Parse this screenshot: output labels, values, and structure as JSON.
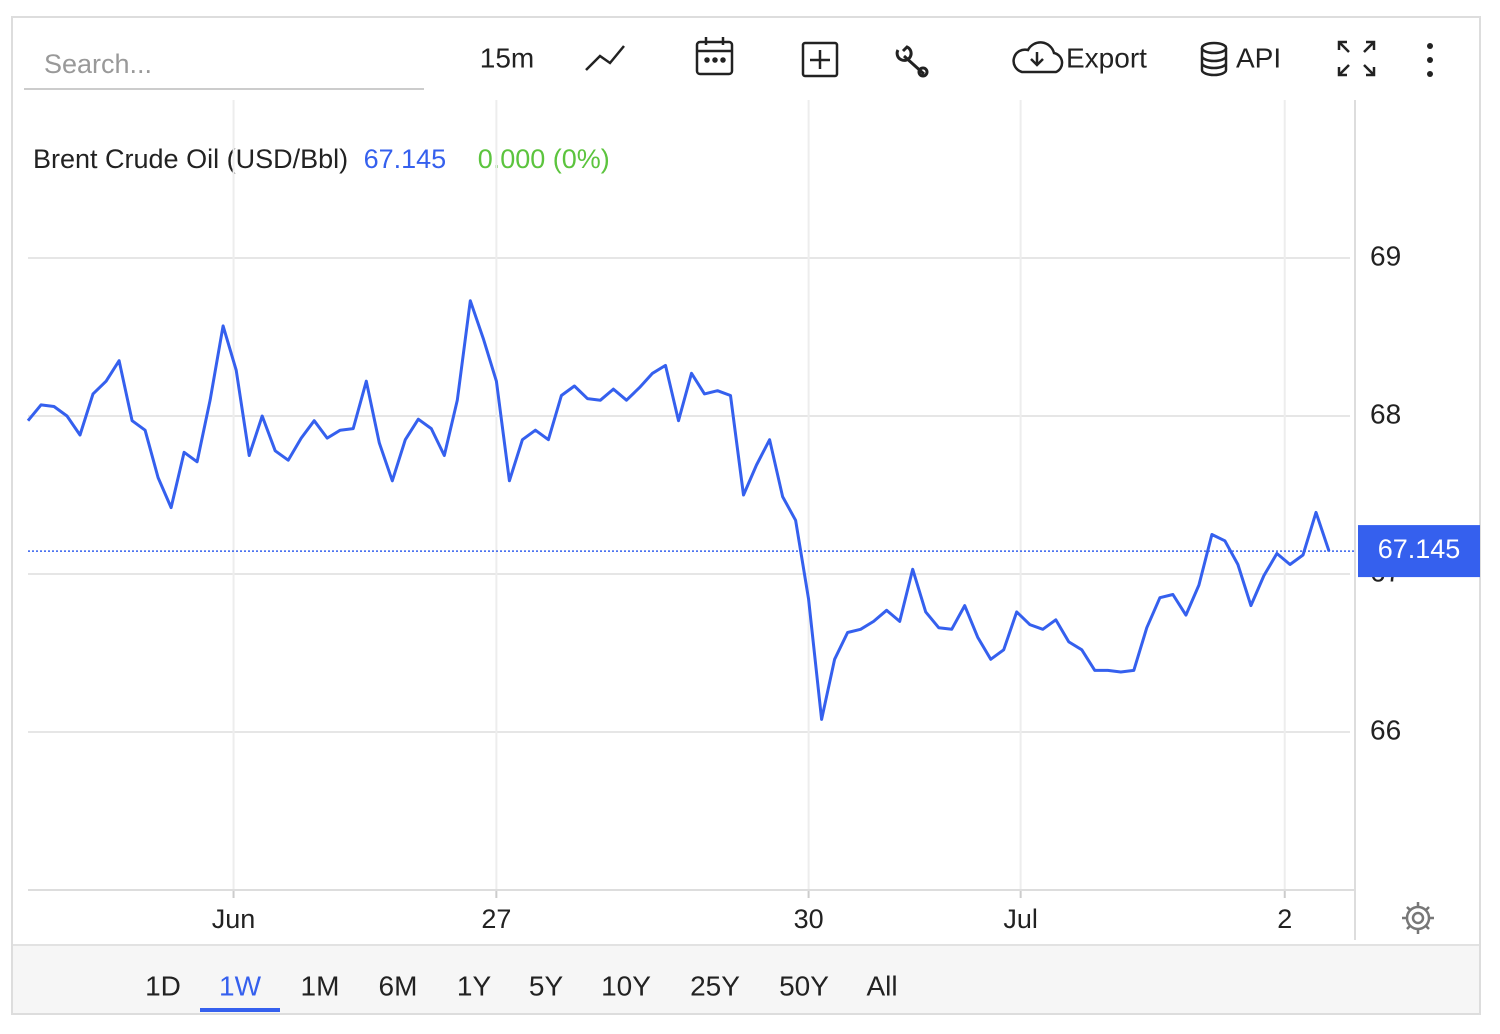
{
  "toolbar": {
    "search_placeholder": "Search...",
    "interval": "15m",
    "export": "Export",
    "api": "API"
  },
  "ranges": {
    "items": [
      "1D",
      "1W",
      "1M",
      "6M",
      "1Y",
      "5Y",
      "10Y",
      "25Y",
      "50Y",
      "All"
    ],
    "active": "1W"
  },
  "chart_data": {
    "type": "line",
    "title": "Brent Crude Oil (USD/Bbl)",
    "last_price": 67.145,
    "change": "0.000 (0%)",
    "change_color": "#5cc43e",
    "x": [
      0,
      1,
      2,
      3,
      4,
      5,
      6,
      7,
      8,
      9,
      10,
      11,
      12,
      13,
      14,
      15,
      16,
      17,
      18,
      19,
      20,
      21,
      22,
      23,
      24,
      25,
      26,
      27,
      28,
      29,
      30,
      31,
      32,
      33,
      34,
      35,
      36,
      37,
      38,
      39,
      40,
      41,
      42,
      43,
      44,
      45,
      46,
      47,
      48,
      49,
      50,
      51,
      52,
      53,
      54,
      55,
      56,
      57,
      58,
      59,
      60,
      61,
      62,
      63,
      64,
      65,
      66,
      67,
      68,
      69,
      70,
      71,
      72,
      73,
      74,
      75,
      76,
      77,
      78,
      79,
      80,
      81,
      82,
      83,
      84,
      85,
      86,
      87,
      88,
      89,
      90,
      91,
      92,
      93,
      94,
      95,
      96,
      97,
      98,
      99,
      100
    ],
    "series": [
      {
        "name": "Brent Crude Oil (USD/Bbl)",
        "color": "#3560ee",
        "values": [
          67.97,
          68.07,
          68.06,
          68.0,
          67.88,
          68.14,
          68.22,
          68.35,
          67.97,
          67.91,
          67.61,
          67.42,
          67.77,
          67.71,
          68.1,
          68.57,
          68.29,
          67.75,
          68.0,
          67.78,
          67.72,
          67.86,
          67.97,
          67.86,
          67.91,
          67.92,
          68.22,
          67.83,
          67.59,
          67.85,
          67.98,
          67.92,
          67.75,
          68.1,
          68.73,
          68.49,
          68.22,
          67.59,
          67.85,
          67.91,
          67.85,
          68.13,
          68.19,
          68.11,
          68.1,
          68.17,
          68.1,
          68.18,
          68.27,
          68.32,
          67.97,
          68.27,
          68.14,
          68.16,
          68.13,
          67.5,
          67.69,
          67.85,
          67.49,
          67.34,
          66.84,
          66.08,
          66.46,
          66.63,
          66.65,
          66.7,
          66.77,
          66.7,
          67.03,
          66.76,
          66.66,
          66.65,
          66.8,
          66.6,
          66.46,
          66.52,
          66.76,
          66.68,
          66.65,
          66.71,
          66.57,
          66.52,
          66.39,
          66.39,
          66.38,
          66.39,
          66.66,
          66.85,
          66.87,
          66.74,
          66.93,
          67.25,
          67.21,
          67.06,
          66.8,
          66.99,
          67.13,
          67.06,
          67.12,
          67.39,
          67.145
        ]
      }
    ],
    "xlim": [
      0,
      102
    ],
    "xticks": [
      {
        "value": 15.8,
        "label": "Jun"
      },
      {
        "value": 36,
        "label": "27"
      },
      {
        "value": 60,
        "label": "30"
      },
      {
        "value": 76.3,
        "label": "Jul"
      },
      {
        "value": 96.6,
        "label": "2"
      }
    ],
    "ylim": [
      65,
      70
    ],
    "yticks": [
      66,
      67,
      68,
      69
    ],
    "grid": true
  }
}
